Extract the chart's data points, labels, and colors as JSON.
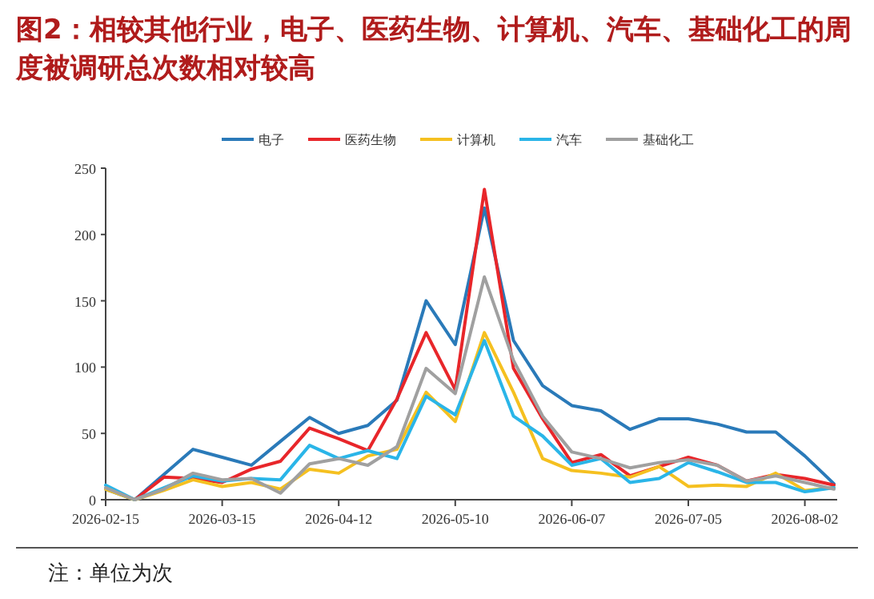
{
  "chart_data": {
    "type": "line",
    "title": "图2：相较其他行业，电子、医药生物、计算机、汽车、基础化工的周度被调研总次数相对较高",
    "x": [
      "2026-02-15",
      "2026-02-22",
      "2026-03-01",
      "2026-03-08",
      "2026-03-15",
      "2026-03-22",
      "2026-03-29",
      "2026-04-05",
      "2026-04-12",
      "2026-04-19",
      "2026-04-26",
      "2026-05-03",
      "2026-05-10",
      "2026-05-17",
      "2026-05-24",
      "2026-05-31",
      "2026-06-07",
      "2026-06-14",
      "2026-06-21",
      "2026-06-28",
      "2026-07-05",
      "2026-07-12",
      "2026-07-19",
      "2026-07-26",
      "2026-08-02",
      "2026-08-09"
    ],
    "series": [
      {
        "name": "电子",
        "color": "#2a7ab9",
        "values": [
          8,
          0,
          19,
          38,
          32,
          26,
          44,
          62,
          50,
          56,
          75,
          150,
          117,
          220,
          120,
          86,
          71,
          67,
          53,
          61,
          61,
          57,
          51,
          51,
          33,
          12
        ]
      },
      {
        "name": "医药生物",
        "color": "#e8262a",
        "values": [
          null,
          0,
          17,
          16,
          13,
          23,
          29,
          54,
          46,
          37,
          76,
          126,
          83,
          234,
          99,
          61,
          28,
          34,
          18,
          25,
          32,
          26,
          14,
          19,
          16,
          11
        ]
      },
      {
        "name": "计算机",
        "color": "#f5c020",
        "values": [
          8,
          0,
          7,
          15,
          10,
          13,
          8,
          23,
          20,
          33,
          38,
          81,
          59,
          126,
          81,
          31,
          22,
          20,
          17,
          25,
          10,
          11,
          10,
          20,
          7,
          9
        ]
      },
      {
        "name": "汽车",
        "color": "#2ab5e8",
        "values": [
          11,
          0,
          9,
          18,
          14,
          16,
          15,
          41,
          31,
          37,
          31,
          78,
          64,
          120,
          63,
          48,
          26,
          31,
          13,
          16,
          28,
          21,
          13,
          13,
          6,
          9
        ]
      },
      {
        "name": "基础化工",
        "color": "#a0a0a0",
        "values": [
          9,
          0,
          8,
          20,
          15,
          16,
          5,
          27,
          31,
          26,
          40,
          99,
          80,
          168,
          105,
          63,
          36,
          31,
          24,
          28,
          30,
          26,
          14,
          18,
          13,
          8
        ]
      }
    ],
    "xlim": [
      "2026-02-15",
      "2026-08-09"
    ],
    "xticks": [
      "2026-02-15",
      "2026-03-15",
      "2026-04-12",
      "2026-05-10",
      "2026-06-07",
      "2026-07-05",
      "2026-08-02"
    ],
    "ylim": [
      0,
      250
    ],
    "yticks": [
      0,
      50,
      100,
      150,
      200,
      250
    ],
    "grid": false,
    "legend": "top",
    "line_style": "solid",
    "marker": "none",
    "annotations": [
      "注：单位为次"
    ]
  }
}
